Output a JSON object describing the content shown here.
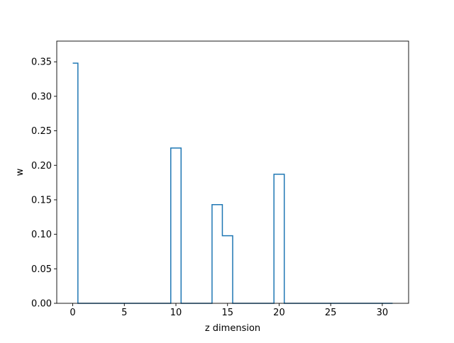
{
  "chart_data": {
    "type": "line",
    "drawstyle": "steps-mid",
    "xlabel": "z dimension",
    "ylabel": "w",
    "xlim": [
      -1.55,
      32.55
    ],
    "ylim": [
      0,
      0.38
    ],
    "xticks": [
      0,
      5,
      10,
      15,
      20,
      25,
      30
    ],
    "yticks": [
      0.0,
      0.05,
      0.1,
      0.15,
      0.2,
      0.25,
      0.3,
      0.35
    ],
    "ytick_labels": [
      "0.00",
      "0.05",
      "0.10",
      "0.15",
      "0.20",
      "0.25",
      "0.30",
      "0.35"
    ],
    "grid": false,
    "series": [
      {
        "color": "#1f77b4",
        "x": [
          0,
          1,
          2,
          3,
          4,
          5,
          6,
          7,
          8,
          9,
          10,
          11,
          12,
          13,
          14,
          15,
          16,
          17,
          18,
          19,
          20,
          21,
          22,
          23,
          24,
          25,
          26,
          27,
          28,
          29,
          30,
          31
        ],
        "y": [
          0.348,
          0,
          0,
          0,
          0,
          0,
          0,
          0,
          0,
          0,
          0.225,
          0,
          0,
          0,
          0.143,
          0.098,
          0,
          0,
          0,
          0,
          0.187,
          0,
          0,
          0,
          0,
          0,
          0,
          0,
          0,
          0,
          0,
          0
        ]
      }
    ]
  }
}
